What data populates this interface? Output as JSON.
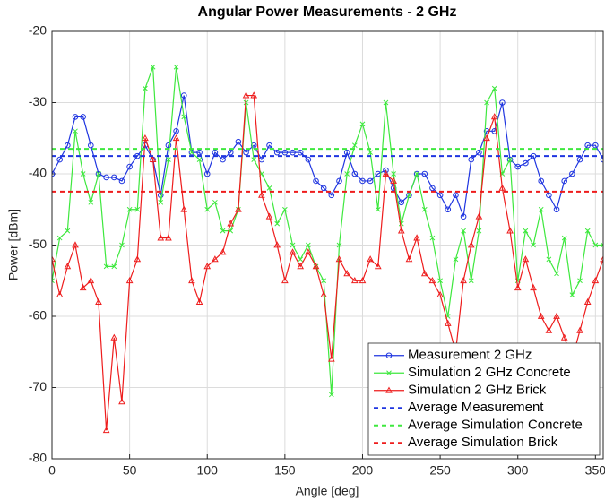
{
  "chart_data": {
    "type": "line",
    "title": "Angular Power Measurements - 2 GHz",
    "xlabel": "Angle [deg]",
    "ylabel": "Power [dBm]",
    "xlim": [
      0,
      355
    ],
    "ylim": [
      -80,
      -20
    ],
    "xticks": [
      0,
      50,
      100,
      150,
      200,
      250,
      300,
      350
    ],
    "yticks": [
      -80,
      -70,
      -60,
      -50,
      -40,
      -30,
      -20
    ],
    "grid": true,
    "legend": "lower right",
    "series": [
      {
        "name": "Measurement 2 GHz",
        "color": "#1f35e0",
        "marker": "o",
        "linestyle": "-",
        "x": [
          0,
          5,
          10,
          15,
          20,
          25,
          30,
          35,
          40,
          45,
          50,
          55,
          60,
          65,
          70,
          75,
          80,
          85,
          90,
          95,
          100,
          105,
          110,
          115,
          120,
          125,
          130,
          135,
          140,
          145,
          150,
          155,
          160,
          165,
          170,
          175,
          180,
          185,
          190,
          195,
          200,
          205,
          210,
          215,
          220,
          225,
          230,
          235,
          240,
          245,
          250,
          255,
          260,
          265,
          270,
          275,
          280,
          285,
          290,
          295,
          300,
          305,
          310,
          315,
          320,
          325,
          330,
          335,
          340,
          345,
          350,
          355
        ],
        "values": [
          -40,
          -38,
          -36,
          -32,
          -32,
          -36,
          -40,
          -40.5,
          -40.5,
          -41,
          -39,
          -37.5,
          -36,
          -38,
          -43,
          -36,
          -34,
          -29,
          -37,
          -37,
          -40,
          -37,
          -38,
          -37,
          -35.5,
          -37,
          -36,
          -38,
          -36,
          -37,
          -37,
          -37,
          -37,
          -38,
          -41,
          -42,
          -43,
          -41,
          -37,
          -40,
          -41,
          -41,
          -40,
          -39.5,
          -42,
          -44,
          -43,
          -40,
          -40,
          -42,
          -43,
          -45,
          -43,
          -46,
          -38,
          -37,
          -34,
          -34,
          -30,
          -38,
          -39,
          -38.5,
          -37.5,
          -41,
          -43,
          -45,
          -41,
          -40,
          -38,
          -36,
          -36,
          -38
        ]
      },
      {
        "name": "Simulation 2 GHz Concrete",
        "color": "#3ee83e",
        "marker": "x",
        "linestyle": "-",
        "x": [
          0,
          5,
          10,
          15,
          20,
          25,
          30,
          35,
          40,
          45,
          50,
          55,
          60,
          65,
          70,
          75,
          80,
          85,
          90,
          95,
          100,
          105,
          110,
          115,
          120,
          125,
          130,
          135,
          140,
          145,
          150,
          155,
          160,
          165,
          170,
          175,
          180,
          185,
          190,
          195,
          200,
          205,
          210,
          215,
          220,
          225,
          230,
          235,
          240,
          245,
          250,
          255,
          260,
          265,
          270,
          275,
          280,
          285,
          290,
          295,
          300,
          305,
          310,
          315,
          320,
          325,
          330,
          335,
          340,
          345,
          350,
          355
        ],
        "values": [
          -55,
          -49,
          -48,
          -34,
          -40,
          -44,
          -40,
          -53,
          -53,
          -50,
          -45,
          -45,
          -28,
          -25,
          -44,
          -38,
          -25,
          -32,
          -37,
          -38,
          -45,
          -44,
          -48,
          -48,
          -45,
          -30,
          -38,
          -40,
          -42,
          -47,
          -45,
          -50,
          -52,
          -50,
          -53,
          -55,
          -71,
          -50,
          -40,
          -36,
          -33,
          -37,
          -45,
          -30,
          -40,
          -47,
          -43,
          -40,
          -45,
          -49,
          -55,
          -60,
          -52,
          -48,
          -55,
          -48,
          -30,
          -28,
          -40,
          -38,
          -55,
          -48,
          -50,
          -45,
          -52,
          -54,
          -49,
          -57,
          -55,
          -48,
          -50,
          -50
        ]
      },
      {
        "name": "Simulation 2 GHz Brick",
        "color": "#ee1c1c",
        "marker": "^",
        "linestyle": "-",
        "x": [
          0,
          5,
          10,
          15,
          20,
          25,
          30,
          35,
          40,
          45,
          50,
          55,
          60,
          65,
          70,
          75,
          80,
          85,
          90,
          95,
          100,
          105,
          110,
          115,
          120,
          125,
          130,
          135,
          140,
          145,
          150,
          155,
          160,
          165,
          170,
          175,
          180,
          185,
          190,
          195,
          200,
          205,
          210,
          215,
          220,
          225,
          230,
          235,
          240,
          245,
          250,
          255,
          260,
          265,
          270,
          275,
          280,
          285,
          290,
          295,
          300,
          305,
          310,
          315,
          320,
          325,
          330,
          335,
          340,
          345,
          350,
          355
        ],
        "values": [
          -52,
          -57,
          -53,
          -50,
          -56,
          -55,
          -58,
          -76,
          -63,
          -72,
          -55,
          -52,
          -35,
          -38,
          -49,
          -49,
          -35,
          -45,
          -55,
          -58,
          -53,
          -52,
          -51,
          -47,
          -45,
          -29,
          -29,
          -43,
          -46,
          -50,
          -55,
          -51,
          -53,
          -51,
          -53,
          -57,
          -66,
          -52,
          -54,
          -55,
          -55,
          -52,
          -53,
          -40,
          -41,
          -48,
          -52,
          -49,
          -54,
          -55,
          -57,
          -61,
          -65,
          -55,
          -50,
          -46,
          -35,
          -32,
          -42,
          -48,
          -56,
          -52,
          -56,
          -60,
          -62,
          -60,
          -63,
          -66,
          -62,
          -58,
          -55,
          -52
        ]
      },
      {
        "name": "Average Measurement",
        "color": "#1f35e0",
        "marker": "none",
        "linestyle": "--",
        "x": [
          0,
          355
        ],
        "values": [
          -37.5,
          -37.5
        ]
      },
      {
        "name": "Average Simulation Concrete",
        "color": "#3ee83e",
        "marker": "none",
        "linestyle": "--",
        "x": [
          0,
          355
        ],
        "values": [
          -36.5,
          -36.5
        ]
      },
      {
        "name": "Average Simulation Brick",
        "color": "#ee1c1c",
        "marker": "none",
        "linestyle": "--",
        "x": [
          0,
          355
        ],
        "values": [
          -42.5,
          -42.5
        ]
      }
    ]
  }
}
